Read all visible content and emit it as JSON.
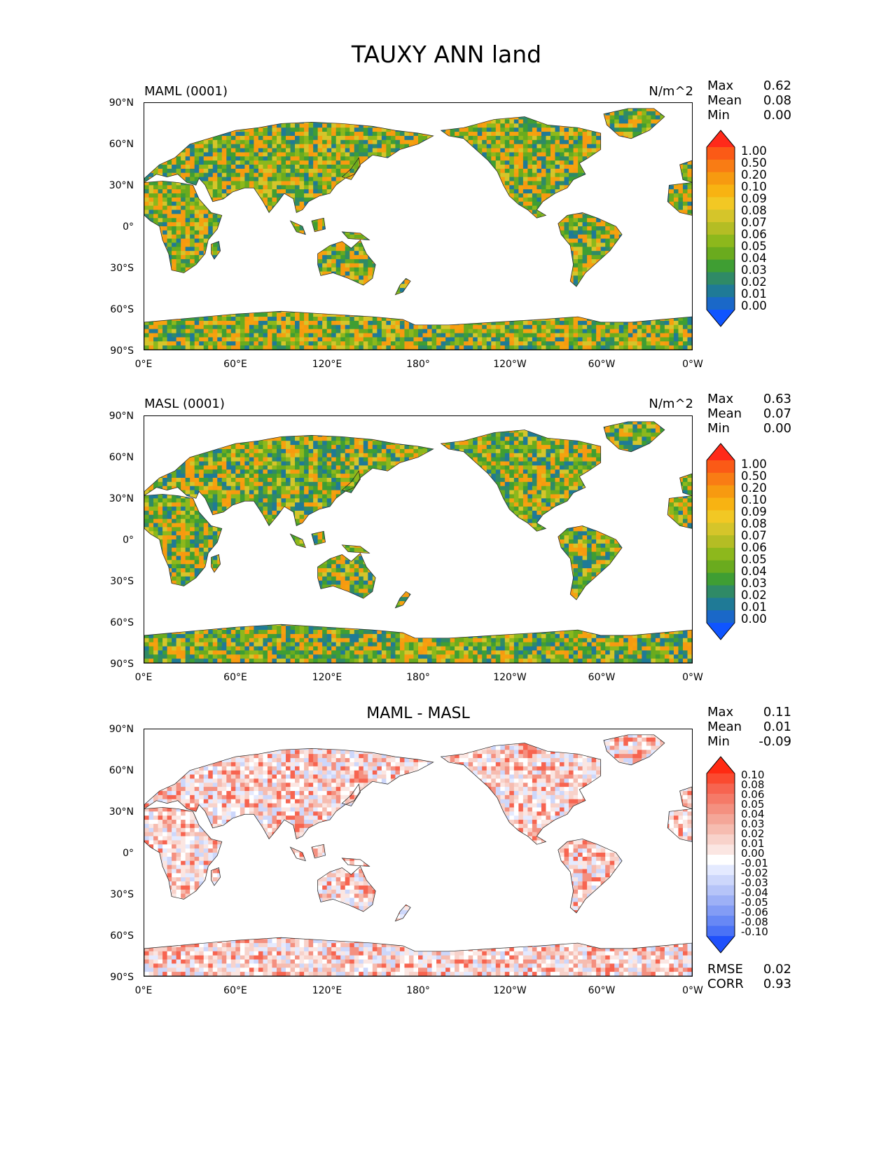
{
  "title": "TAUXY ANN land",
  "panels": [
    {
      "name": "MAML (0001)",
      "units": "N/m^2",
      "stats": [
        {
          "label": "Max",
          "value": "0.62"
        },
        {
          "label": "Mean",
          "value": "0.08"
        },
        {
          "label": "Min",
          "value": "0.00"
        }
      ],
      "colorbar": {
        "labels": [
          "1.00",
          "0.50",
          "0.20",
          "0.10",
          "0.09",
          "0.08",
          "0.07",
          "0.06",
          "0.05",
          "0.04",
          "0.03",
          "0.02",
          "0.01",
          "0.00"
        ],
        "colors": [
          "#ff2a1a",
          "#fb5a16",
          "#f97c14",
          "#f79a10",
          "#f8b312",
          "#f2c824",
          "#d5c52a",
          "#b4bd24",
          "#8db81c",
          "#6aab1e",
          "#3f9e33",
          "#2f8a66",
          "#1f7a96",
          "#1a68c8",
          "#0f55ff"
        ]
      },
      "x_ticks": [
        "0°E",
        "60°E",
        "120°E",
        "180°",
        "120°W",
        "60°W",
        "0°W"
      ],
      "y_ticks": [
        "90°N",
        "60°N",
        "30°N",
        "0°",
        "30°S",
        "60°S",
        "90°S"
      ],
      "palette": [
        "#f79a10",
        "#f5a20f",
        "#8db81c",
        "#3f9e33",
        "#6aab1e",
        "#1f7a96",
        "#d5c52a",
        "#2f8a66"
      ]
    },
    {
      "name": "MASL (0001)",
      "units": "N/m^2",
      "stats": [
        {
          "label": "Max",
          "value": "0.63"
        },
        {
          "label": "Mean",
          "value": "0.07"
        },
        {
          "label": "Min",
          "value": "0.00"
        }
      ],
      "colorbar": {
        "labels": [
          "1.00",
          "0.50",
          "0.20",
          "0.10",
          "0.09",
          "0.08",
          "0.07",
          "0.06",
          "0.05",
          "0.04",
          "0.03",
          "0.02",
          "0.01",
          "0.00"
        ],
        "colors": [
          "#ff2a1a",
          "#fb5a16",
          "#f97c14",
          "#f79a10",
          "#f8b312",
          "#f2c824",
          "#d5c52a",
          "#b4bd24",
          "#8db81c",
          "#6aab1e",
          "#3f9e33",
          "#2f8a66",
          "#1f7a96",
          "#1a68c8",
          "#0f55ff"
        ]
      },
      "x_ticks": [
        "0°E",
        "60°E",
        "120°E",
        "180°",
        "120°W",
        "60°W",
        "0°W"
      ],
      "y_ticks": [
        "90°N",
        "60°N",
        "30°N",
        "0°",
        "30°S",
        "60°S",
        "90°S"
      ],
      "palette": [
        "#f79a10",
        "#6aab1e",
        "#3f9e33",
        "#1f7a96",
        "#8db81c",
        "#f5a20f",
        "#2f8a66",
        "#d5c52a"
      ]
    },
    {
      "name": "MAML - MASL",
      "units": "",
      "stats": [
        {
          "label": "Max",
          "value": "0.11"
        },
        {
          "label": "Mean",
          "value": "0.01"
        },
        {
          "label": "Min",
          "value": "-0.09"
        }
      ],
      "colorbar": {
        "labels": [
          "0.10",
          "0.08",
          "0.06",
          "0.05",
          "0.04",
          "0.03",
          "0.02",
          "0.01",
          "0.00",
          "-0.01",
          "-0.02",
          "-0.03",
          "-0.04",
          "-0.05",
          "-0.06",
          "-0.08",
          "-0.10"
        ],
        "colors": [
          "#ff2a12",
          "#fb4a30",
          "#f76450",
          "#f57a68",
          "#f49080",
          "#f4a698",
          "#f6bcb0",
          "#f8d2ca",
          "#fbe6e2",
          "#ffffff",
          "#e4eaff",
          "#cdd7fb",
          "#b6c4f8",
          "#9db0f6",
          "#839cf5",
          "#6788f5",
          "#4a72f6",
          "#1f50fb"
        ]
      },
      "x_ticks": [
        "0°E",
        "60°E",
        "120°E",
        "180°",
        "120°W",
        "60°W",
        "0°W"
      ],
      "y_ticks": [
        "90°N",
        "60°N",
        "30°N",
        "0°",
        "30°S",
        "60°S",
        "90°S"
      ],
      "palette": [
        "#fbe6e2",
        "#f8d2ca",
        "#f6bcb0",
        "#f49080",
        "#ffffff",
        "#e4eaff",
        "#cdd7fb",
        "#f76450"
      ],
      "extra_stats": [
        {
          "label": "RMSE",
          "value": "0.02"
        },
        {
          "label": "CORR",
          "value": "0.93"
        }
      ]
    }
  ]
}
